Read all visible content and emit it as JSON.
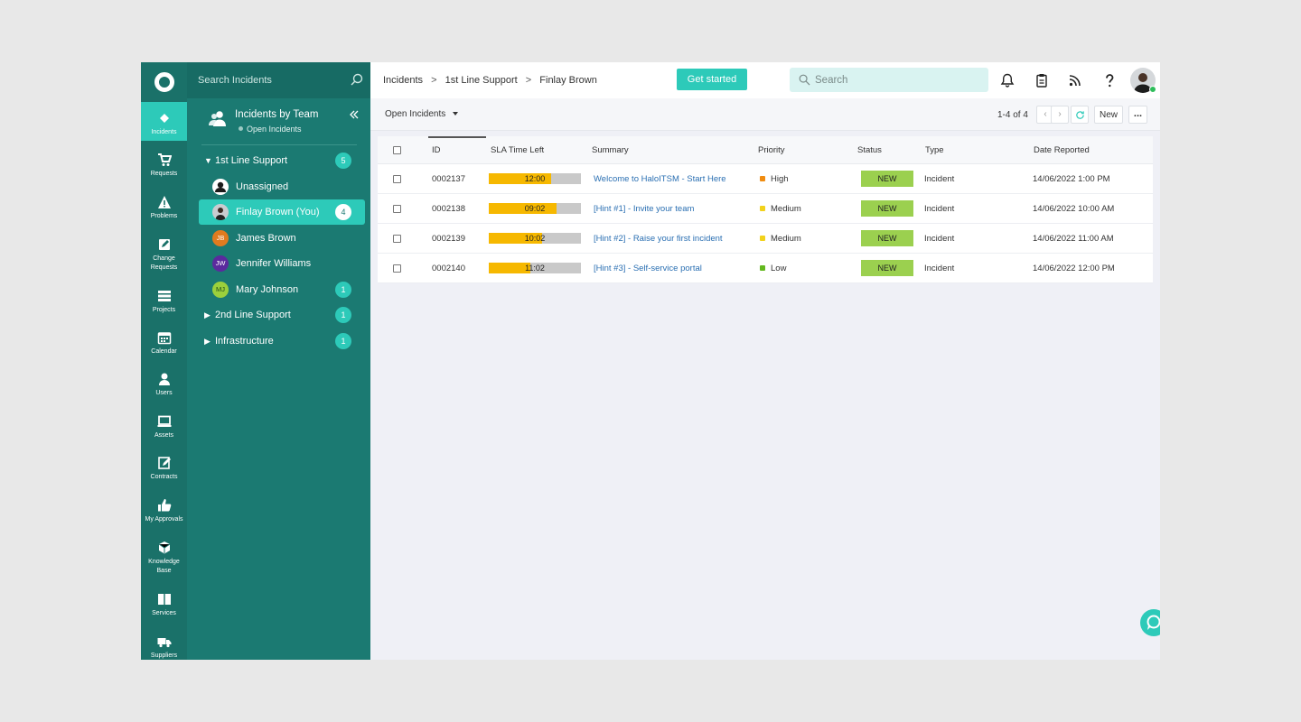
{
  "colors": {
    "rail": "#1a7169",
    "panel": "#1b7a72",
    "accent": "#2dcab9",
    "sla_fill": "#f6b800",
    "status_new": "#9bd04f"
  },
  "rail": {
    "items": [
      {
        "label": "Incidents",
        "icon": "ticket-icon",
        "active": true
      },
      {
        "label": "Requests",
        "icon": "cart-icon"
      },
      {
        "label": "Problems",
        "icon": "warning-icon"
      },
      {
        "label": "Change Requests",
        "icon": "edit-icon"
      },
      {
        "label": "Projects",
        "icon": "stack-icon"
      },
      {
        "label": "Calendar",
        "icon": "calendar-icon"
      },
      {
        "label": "Users",
        "icon": "user-icon"
      },
      {
        "label": "Assets",
        "icon": "monitor-icon"
      },
      {
        "label": "Contracts",
        "icon": "contract-icon"
      },
      {
        "label": "My Approvals",
        "icon": "thumbs-up-icon"
      },
      {
        "label": "Knowledge Base",
        "icon": "cubes-icon"
      },
      {
        "label": "Services",
        "icon": "book-icon"
      },
      {
        "label": "Suppliers",
        "icon": "truck-icon"
      }
    ]
  },
  "team_panel": {
    "search_placeholder": "Search Incidents",
    "title": "Incidents by Team",
    "subtitle": "Open Incidents",
    "tree": [
      {
        "label": "1st Line Support",
        "badge": "5",
        "expanded": true,
        "level": 0
      },
      {
        "label": "Unassigned",
        "level": 1,
        "avatar": "person-icon"
      },
      {
        "label": "Finlay Brown (You)",
        "badge": "4",
        "level": 1,
        "selected": true,
        "avatar": "photo"
      },
      {
        "label": "James Brown",
        "level": 1,
        "initials": "JB",
        "avatar_color": "#e07b1f"
      },
      {
        "label": "Jennifer Williams",
        "level": 1,
        "initials": "JW",
        "avatar_color": "#5b2a9e"
      },
      {
        "label": "Mary Johnson",
        "badge": "1",
        "level": 1,
        "initials": "MJ",
        "avatar_color": "#9bd03c"
      },
      {
        "label": "2nd Line Support",
        "badge": "1",
        "level": 0
      },
      {
        "label": "Infrastructure",
        "badge": "1",
        "level": 0
      }
    ]
  },
  "topbar": {
    "breadcrumb": [
      "Incidents",
      "1st Line Support",
      "Finlay Brown"
    ],
    "breadcrumb_sep": ">",
    "get_started": "Get started",
    "search_placeholder": "Search"
  },
  "subbar": {
    "view": "Open Incidents",
    "pager": "1-4 of 4",
    "new_label": "New",
    "more_label": "..."
  },
  "table": {
    "columns": [
      "ID",
      "SLA Time Left",
      "Summary",
      "Priority",
      "Status",
      "Type",
      "Date Reported"
    ],
    "rows": [
      {
        "id": "0002137",
        "sla": "12:00",
        "sla_fill": 0.68,
        "summary": "Welcome to HaloITSM - Start Here",
        "priority": "High",
        "priority_color": "#f08c10",
        "status": "NEW",
        "type": "Incident",
        "date": "14/06/2022 1:00 PM"
      },
      {
        "id": "0002138",
        "sla": "09:02",
        "sla_fill": 0.74,
        "summary": "[Hint #1] - Invite your team",
        "priority": "Medium",
        "priority_color": "#f2d21b",
        "status": "NEW",
        "type": "Incident",
        "date": "14/06/2022 10:00 AM"
      },
      {
        "id": "0002139",
        "sla": "10:02",
        "sla_fill": 0.58,
        "summary": "[Hint #2] - Raise your first incident",
        "priority": "Medium",
        "priority_color": "#f2d21b",
        "status": "NEW",
        "type": "Incident",
        "date": "14/06/2022 11:00 AM"
      },
      {
        "id": "0002140",
        "sla": "11:02",
        "sla_fill": 0.45,
        "summary": "[Hint #3] - Self-service portal",
        "priority": "Low",
        "priority_color": "#63b81f",
        "status": "NEW",
        "type": "Incident",
        "date": "14/06/2022 12:00 PM"
      }
    ]
  }
}
